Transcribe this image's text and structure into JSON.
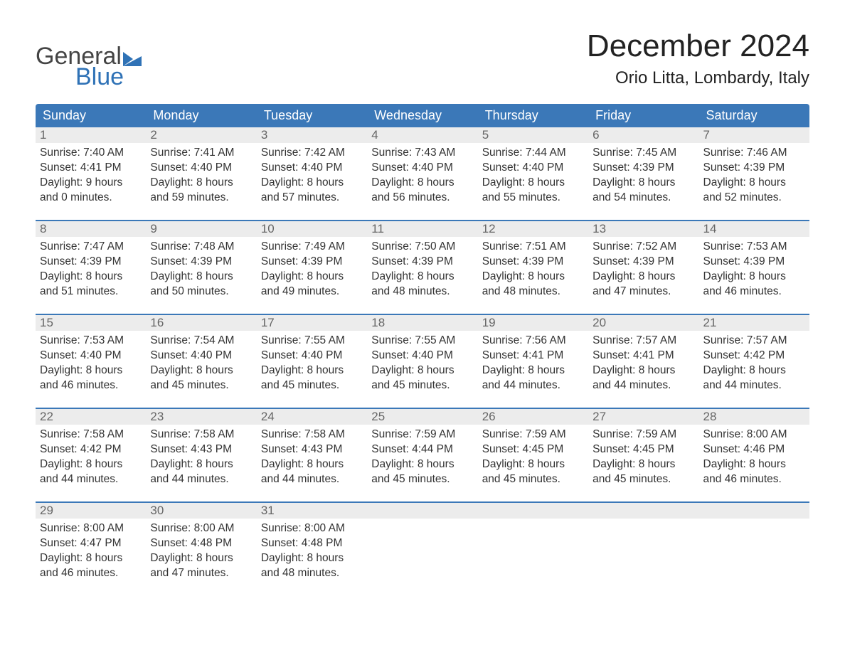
{
  "logo": {
    "text_general": "General",
    "text_blue": "Blue",
    "flag_color": "#2f72b6"
  },
  "title": "December 2024",
  "location": "Orio Litta, Lombardy, Italy",
  "colors": {
    "header_bg": "#3b78b8",
    "header_text": "#ffffff",
    "row_border": "#3b78b8",
    "daynum_bg": "#ececec",
    "daynum_text": "#666666",
    "body_text": "#333333",
    "background": "#ffffff"
  },
  "weekdays": [
    "Sunday",
    "Monday",
    "Tuesday",
    "Wednesday",
    "Thursday",
    "Friday",
    "Saturday"
  ],
  "weeks": [
    [
      {
        "day": "1",
        "sunrise": "Sunrise: 7:40 AM",
        "sunset": "Sunset: 4:41 PM",
        "daylight1": "Daylight: 9 hours",
        "daylight2": "and 0 minutes."
      },
      {
        "day": "2",
        "sunrise": "Sunrise: 7:41 AM",
        "sunset": "Sunset: 4:40 PM",
        "daylight1": "Daylight: 8 hours",
        "daylight2": "and 59 minutes."
      },
      {
        "day": "3",
        "sunrise": "Sunrise: 7:42 AM",
        "sunset": "Sunset: 4:40 PM",
        "daylight1": "Daylight: 8 hours",
        "daylight2": "and 57 minutes."
      },
      {
        "day": "4",
        "sunrise": "Sunrise: 7:43 AM",
        "sunset": "Sunset: 4:40 PM",
        "daylight1": "Daylight: 8 hours",
        "daylight2": "and 56 minutes."
      },
      {
        "day": "5",
        "sunrise": "Sunrise: 7:44 AM",
        "sunset": "Sunset: 4:40 PM",
        "daylight1": "Daylight: 8 hours",
        "daylight2": "and 55 minutes."
      },
      {
        "day": "6",
        "sunrise": "Sunrise: 7:45 AM",
        "sunset": "Sunset: 4:39 PM",
        "daylight1": "Daylight: 8 hours",
        "daylight2": "and 54 minutes."
      },
      {
        "day": "7",
        "sunrise": "Sunrise: 7:46 AM",
        "sunset": "Sunset: 4:39 PM",
        "daylight1": "Daylight: 8 hours",
        "daylight2": "and 52 minutes."
      }
    ],
    [
      {
        "day": "8",
        "sunrise": "Sunrise: 7:47 AM",
        "sunset": "Sunset: 4:39 PM",
        "daylight1": "Daylight: 8 hours",
        "daylight2": "and 51 minutes."
      },
      {
        "day": "9",
        "sunrise": "Sunrise: 7:48 AM",
        "sunset": "Sunset: 4:39 PM",
        "daylight1": "Daylight: 8 hours",
        "daylight2": "and 50 minutes."
      },
      {
        "day": "10",
        "sunrise": "Sunrise: 7:49 AM",
        "sunset": "Sunset: 4:39 PM",
        "daylight1": "Daylight: 8 hours",
        "daylight2": "and 49 minutes."
      },
      {
        "day": "11",
        "sunrise": "Sunrise: 7:50 AM",
        "sunset": "Sunset: 4:39 PM",
        "daylight1": "Daylight: 8 hours",
        "daylight2": "and 48 minutes."
      },
      {
        "day": "12",
        "sunrise": "Sunrise: 7:51 AM",
        "sunset": "Sunset: 4:39 PM",
        "daylight1": "Daylight: 8 hours",
        "daylight2": "and 48 minutes."
      },
      {
        "day": "13",
        "sunrise": "Sunrise: 7:52 AM",
        "sunset": "Sunset: 4:39 PM",
        "daylight1": "Daylight: 8 hours",
        "daylight2": "and 47 minutes."
      },
      {
        "day": "14",
        "sunrise": "Sunrise: 7:53 AM",
        "sunset": "Sunset: 4:39 PM",
        "daylight1": "Daylight: 8 hours",
        "daylight2": "and 46 minutes."
      }
    ],
    [
      {
        "day": "15",
        "sunrise": "Sunrise: 7:53 AM",
        "sunset": "Sunset: 4:40 PM",
        "daylight1": "Daylight: 8 hours",
        "daylight2": "and 46 minutes."
      },
      {
        "day": "16",
        "sunrise": "Sunrise: 7:54 AM",
        "sunset": "Sunset: 4:40 PM",
        "daylight1": "Daylight: 8 hours",
        "daylight2": "and 45 minutes."
      },
      {
        "day": "17",
        "sunrise": "Sunrise: 7:55 AM",
        "sunset": "Sunset: 4:40 PM",
        "daylight1": "Daylight: 8 hours",
        "daylight2": "and 45 minutes."
      },
      {
        "day": "18",
        "sunrise": "Sunrise: 7:55 AM",
        "sunset": "Sunset: 4:40 PM",
        "daylight1": "Daylight: 8 hours",
        "daylight2": "and 45 minutes."
      },
      {
        "day": "19",
        "sunrise": "Sunrise: 7:56 AM",
        "sunset": "Sunset: 4:41 PM",
        "daylight1": "Daylight: 8 hours",
        "daylight2": "and 44 minutes."
      },
      {
        "day": "20",
        "sunrise": "Sunrise: 7:57 AM",
        "sunset": "Sunset: 4:41 PM",
        "daylight1": "Daylight: 8 hours",
        "daylight2": "and 44 minutes."
      },
      {
        "day": "21",
        "sunrise": "Sunrise: 7:57 AM",
        "sunset": "Sunset: 4:42 PM",
        "daylight1": "Daylight: 8 hours",
        "daylight2": "and 44 minutes."
      }
    ],
    [
      {
        "day": "22",
        "sunrise": "Sunrise: 7:58 AM",
        "sunset": "Sunset: 4:42 PM",
        "daylight1": "Daylight: 8 hours",
        "daylight2": "and 44 minutes."
      },
      {
        "day": "23",
        "sunrise": "Sunrise: 7:58 AM",
        "sunset": "Sunset: 4:43 PM",
        "daylight1": "Daylight: 8 hours",
        "daylight2": "and 44 minutes."
      },
      {
        "day": "24",
        "sunrise": "Sunrise: 7:58 AM",
        "sunset": "Sunset: 4:43 PM",
        "daylight1": "Daylight: 8 hours",
        "daylight2": "and 44 minutes."
      },
      {
        "day": "25",
        "sunrise": "Sunrise: 7:59 AM",
        "sunset": "Sunset: 4:44 PM",
        "daylight1": "Daylight: 8 hours",
        "daylight2": "and 45 minutes."
      },
      {
        "day": "26",
        "sunrise": "Sunrise: 7:59 AM",
        "sunset": "Sunset: 4:45 PM",
        "daylight1": "Daylight: 8 hours",
        "daylight2": "and 45 minutes."
      },
      {
        "day": "27",
        "sunrise": "Sunrise: 7:59 AM",
        "sunset": "Sunset: 4:45 PM",
        "daylight1": "Daylight: 8 hours",
        "daylight2": "and 45 minutes."
      },
      {
        "day": "28",
        "sunrise": "Sunrise: 8:00 AM",
        "sunset": "Sunset: 4:46 PM",
        "daylight1": "Daylight: 8 hours",
        "daylight2": "and 46 minutes."
      }
    ],
    [
      {
        "day": "29",
        "sunrise": "Sunrise: 8:00 AM",
        "sunset": "Sunset: 4:47 PM",
        "daylight1": "Daylight: 8 hours",
        "daylight2": "and 46 minutes."
      },
      {
        "day": "30",
        "sunrise": "Sunrise: 8:00 AM",
        "sunset": "Sunset: 4:48 PM",
        "daylight1": "Daylight: 8 hours",
        "daylight2": "and 47 minutes."
      },
      {
        "day": "31",
        "sunrise": "Sunrise: 8:00 AM",
        "sunset": "Sunset: 4:48 PM",
        "daylight1": "Daylight: 8 hours",
        "daylight2": "and 48 minutes."
      },
      {
        "empty": true
      },
      {
        "empty": true
      },
      {
        "empty": true
      },
      {
        "empty": true
      }
    ]
  ]
}
